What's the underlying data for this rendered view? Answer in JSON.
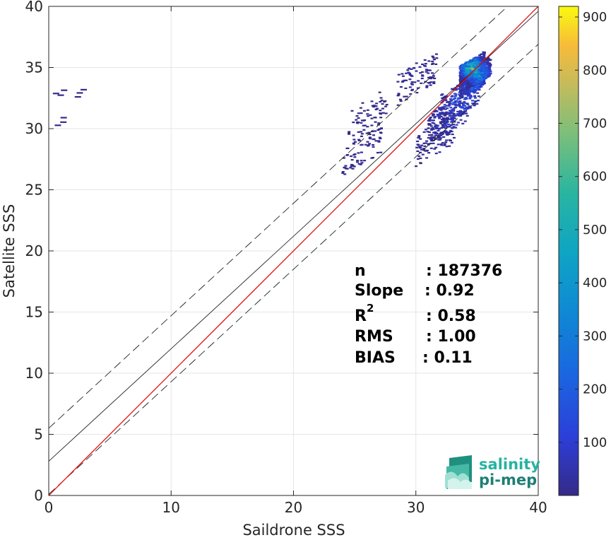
{
  "chart_data": {
    "type": "heatmap",
    "xlabel": "Saildrone SSS",
    "ylabel": "Satellite SSS",
    "xlim": [
      0,
      40
    ],
    "ylim": [
      0,
      40
    ],
    "xticks": [
      "0",
      "10",
      "20",
      "30",
      "40"
    ],
    "yticks": [
      "0",
      "5",
      "10",
      "15",
      "20",
      "25",
      "30",
      "35",
      "40"
    ],
    "grid": true,
    "colorbar": {
      "ticks": [
        "100",
        "200",
        "300",
        "400",
        "500",
        "600",
        "700",
        "800",
        "900"
      ],
      "tick_values": [
        100,
        200,
        300,
        400,
        500,
        600,
        700,
        800,
        900
      ],
      "range": [
        0,
        920
      ],
      "colormap": "parula"
    },
    "lines": [
      {
        "style": "red solid",
        "x": [
          0,
          40
        ],
        "y": [
          0,
          40
        ]
      },
      {
        "style": "black solid",
        "x": [
          0,
          40
        ],
        "y": [
          2.8,
          39.6
        ]
      },
      {
        "style": "black dashed",
        "x": [
          0,
          40
        ],
        "y": [
          5.5,
          42.3
        ]
      },
      {
        "style": "black dashed",
        "x": [
          0,
          40
        ],
        "y": [
          0.1,
          36.9
        ]
      }
    ],
    "density_clusters": [
      {
        "x": 0.6,
        "y": 32.85,
        "count": 20,
        "note": "outlier"
      },
      {
        "x": 0.7,
        "y": 30.65,
        "count": 15,
        "note": "outlier"
      },
      {
        "x": 2.3,
        "y": 32.85,
        "count": 10,
        "note": "outlier"
      },
      {
        "x": 26.0,
        "y": 31.2,
        "count": 20
      },
      {
        "x": 25.5,
        "y": 28.4,
        "count": 30
      },
      {
        "x": 30.0,
        "y": 34.2,
        "count": 40
      },
      {
        "x": 31.5,
        "y": 29.2,
        "count": 60
      },
      {
        "x": 32.5,
        "y": 31.0,
        "count": 150
      },
      {
        "x": 33.5,
        "y": 32.5,
        "count": 250
      },
      {
        "x": 34.5,
        "y": 33.8,
        "count": 400
      },
      {
        "x": 35.0,
        "y": 34.6,
        "count": 600
      },
      {
        "x": 34.5,
        "y": 35.0,
        "count": 850
      }
    ],
    "stats": [
      {
        "label": "n",
        "value": ": 187376"
      },
      {
        "label": "Slope",
        "value": ": 0.92"
      },
      {
        "label": "R",
        "sup": "2",
        "value": ": 0.58"
      },
      {
        "label": "RMS",
        "value": ": 1.00"
      },
      {
        "label": "BIAS",
        "value": ": 0.11"
      }
    ]
  },
  "logo": {
    "line1": "salinity",
    "line2": "pi-mep"
  }
}
